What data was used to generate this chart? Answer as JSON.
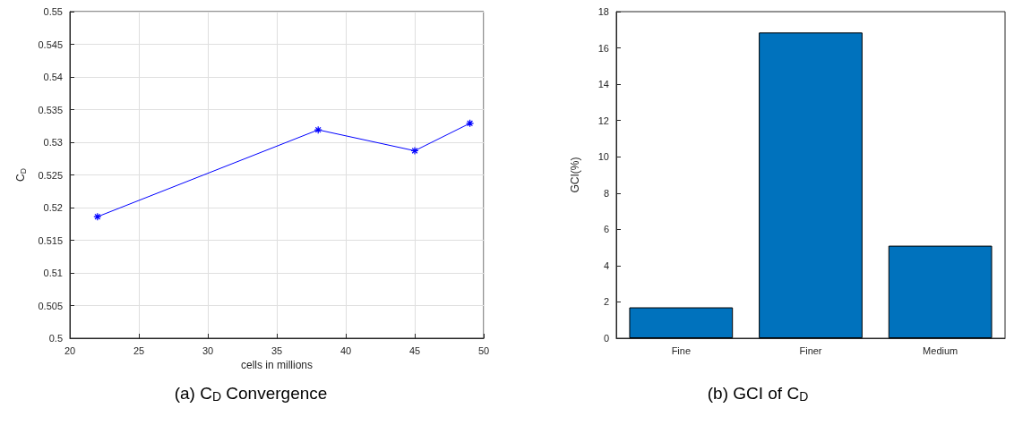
{
  "chart_data": [
    {
      "type": "line",
      "title": "(a) C$_{D}$ Convergence",
      "xlabel": "cells in millions",
      "ylabel": "C$_{D}$",
      "x": [
        22,
        38,
        45,
        49
      ],
      "values": [
        0.5186,
        0.5319,
        0.5287,
        0.5329
      ],
      "color": "#0000ff",
      "marker": "cross",
      "xlim": [
        20,
        50
      ],
      "xticks": [
        20,
        25,
        30,
        35,
        40,
        45,
        50
      ],
      "ylim": [
        0.5,
        0.55
      ],
      "yticks": [
        0.5,
        0.505,
        0.51,
        0.515,
        0.52,
        0.525,
        0.53,
        0.535,
        0.54,
        0.545,
        0.55
      ],
      "grid": true
    },
    {
      "type": "bar",
      "title": "(b) GCI of C$_{D}$",
      "ylabel": "GCI(%)",
      "categories": [
        "Fine",
        "Finer",
        "Medium"
      ],
      "values": [
        1.7,
        16.85,
        5.1
      ],
      "color": "#0072bd",
      "ylim": [
        0,
        18
      ],
      "yticks": [
        0,
        2,
        4,
        6,
        8,
        10,
        12,
        14,
        16,
        18
      ]
    }
  ]
}
